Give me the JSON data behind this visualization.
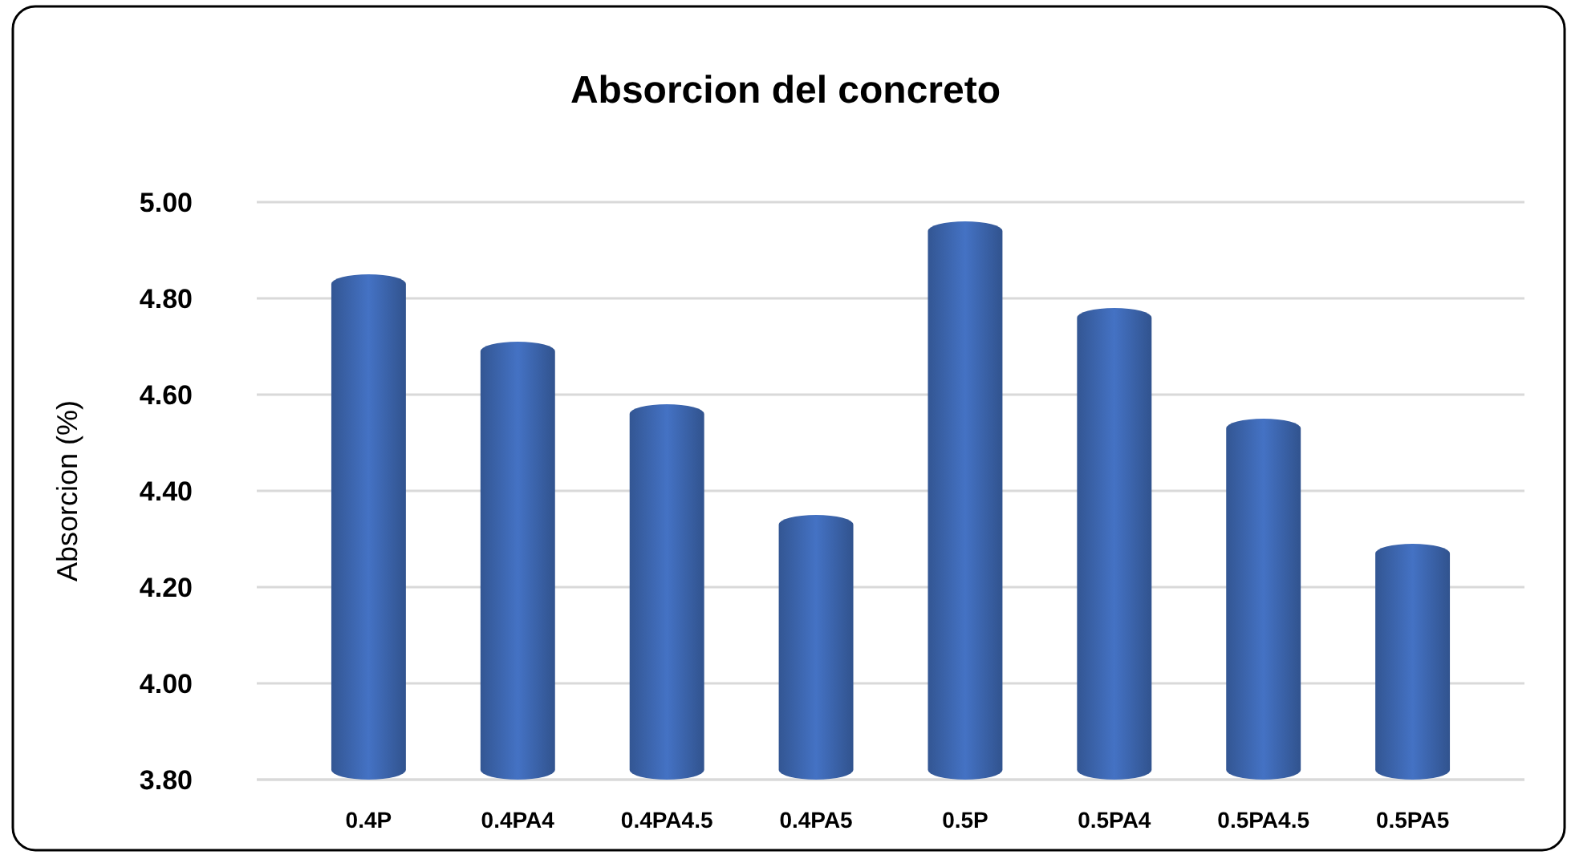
{
  "chart_data": {
    "type": "bar",
    "title": "Absorcion del concreto",
    "ylabel": "Absorcion (%)",
    "categories": [
      "0.4P",
      "0.4PA4",
      "0.4PA4.5",
      "0.4PA5",
      "0.5P",
      "0.5PA4",
      "0.5PA4.5",
      "0.5PA5"
    ],
    "values": [
      4.85,
      4.71,
      4.58,
      4.35,
      4.96,
      4.78,
      4.55,
      4.29
    ],
    "color": "#4472c4",
    "ylim": [
      3.8,
      5.0
    ],
    "yticks": [
      {
        "value": 3.8,
        "label": "3.80"
      },
      {
        "value": 4.0,
        "label": "4.00"
      },
      {
        "value": 4.2,
        "label": "4.20"
      },
      {
        "value": 4.4,
        "label": "4.40"
      },
      {
        "value": 4.6,
        "label": "4.60"
      },
      {
        "value": 4.8,
        "label": "4.80"
      },
      {
        "value": 5.0,
        "label": "5.00"
      }
    ],
    "grid": true
  }
}
